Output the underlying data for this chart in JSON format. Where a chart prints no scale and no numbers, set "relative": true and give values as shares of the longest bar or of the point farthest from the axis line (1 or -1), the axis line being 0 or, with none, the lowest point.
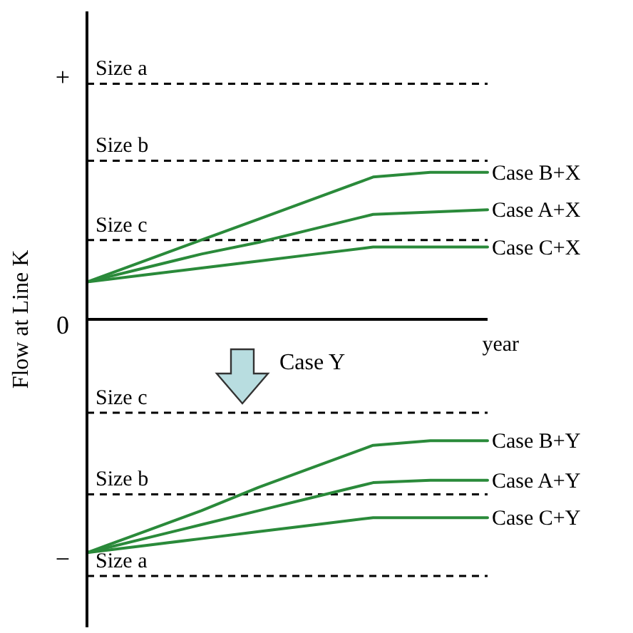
{
  "chart_data": {
    "type": "line",
    "relative": true,
    "xlabel": "year",
    "ylabel": "Flow at Line K",
    "categories": [
      null,
      null,
      null,
      null,
      null,
      null,
      null,
      null
    ],
    "marker": "none",
    "line_style": "solid",
    "series": [
      {
        "name": "Case B+X",
        "color": "#2a8a3a",
        "values": [
          0.16,
          0.25,
          0.34,
          0.43,
          0.52,
          0.61,
          0.63,
          0.63
        ]
      },
      {
        "name": "Case A+X",
        "color": "#2a8a3a",
        "values": [
          0.16,
          0.22,
          0.28,
          0.33,
          0.39,
          0.45,
          0.46,
          0.47
        ]
      },
      {
        "name": "Case C+X",
        "color": "#2a8a3a",
        "values": [
          0.16,
          0.19,
          0.22,
          0.25,
          0.28,
          0.31,
          0.31,
          0.31
        ]
      },
      {
        "name": "Case B+Y",
        "color": "#2a8a3a",
        "values": [
          -1,
          -0.91,
          -0.82,
          -0.72,
          -0.63,
          -0.54,
          -0.52,
          -0.52
        ]
      },
      {
        "name": "Case A+Y",
        "color": "#2a8a3a",
        "values": [
          -1,
          -0.94,
          -0.88,
          -0.82,
          -0.76,
          -0.7,
          -0.69,
          -0.69
        ]
      },
      {
        "name": "Case C+Y",
        "color": "#2a8a3a",
        "values": [
          -1,
          -0.97,
          -0.94,
          -0.91,
          -0.88,
          -0.85,
          -0.85,
          -0.85
        ]
      }
    ],
    "ref_lines": [
      {
        "axis": "y",
        "value": 1.01,
        "label": "Size a",
        "color": "#000000",
        "line_style": "dashed"
      },
      {
        "axis": "y",
        "value": 0.68,
        "label": "Size b",
        "color": "#000000",
        "line_style": "dashed"
      },
      {
        "axis": "y",
        "value": 0.34,
        "label": "Size c",
        "color": "#000000",
        "line_style": "dashed"
      },
      {
        "axis": "y",
        "value": -0.4,
        "label": "Size c",
        "color": "#000000",
        "line_style": "dashed"
      },
      {
        "axis": "y",
        "value": -0.75,
        "label": "Size b",
        "color": "#000000",
        "line_style": "dashed"
      },
      {
        "axis": "y",
        "value": -1.1,
        "label": "Size a",
        "color": "#000000",
        "line_style": "dashed"
      }
    ],
    "annotations": [
      "+",
      "0",
      "−",
      "Case Y"
    ]
  }
}
